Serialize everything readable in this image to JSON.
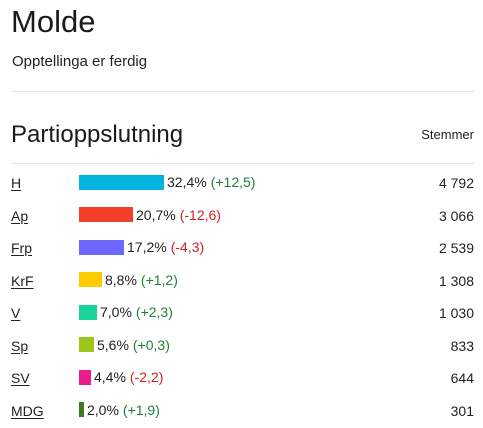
{
  "header": {
    "title": "Molde",
    "status": "Opptellinga er ferdig"
  },
  "section": {
    "title": "Partioppslutning",
    "votes_header": "Stemmer"
  },
  "parties": [
    {
      "name": "H",
      "pct": "32,4%",
      "change": "(+12,5)",
      "votes": "4 792",
      "color": "#00b4dd",
      "share": 32.4,
      "positive": true
    },
    {
      "name": "Ap",
      "pct": "20,7%",
      "change": "(-12,6)",
      "votes": "3 066",
      "color": "#f43f2a",
      "share": 20.7,
      "positive": false
    },
    {
      "name": "Frp",
      "pct": "17,2%",
      "change": "(-4,3)",
      "votes": "2 539",
      "color": "#6b67ff",
      "share": 17.2,
      "positive": false
    },
    {
      "name": "KrF",
      "pct": "8,8%",
      "change": "(+1,2)",
      "votes": "1 308",
      "color": "#ffcc00",
      "share": 8.8,
      "positive": true
    },
    {
      "name": "V",
      "pct": "7,0%",
      "change": "(+2,3)",
      "votes": "1 030",
      "color": "#19d39a",
      "share": 7.0,
      "positive": true
    },
    {
      "name": "Sp",
      "pct": "5,6%",
      "change": "(+0,3)",
      "votes": "833",
      "color": "#9cc51a",
      "share": 5.6,
      "positive": true
    },
    {
      "name": "SV",
      "pct": "4,4%",
      "change": "(-2,2)",
      "votes": "644",
      "color": "#ec1c8c",
      "share": 4.4,
      "positive": false
    },
    {
      "name": "MDG",
      "pct": "2,0%",
      "change": "(+1,9)",
      "votes": "301",
      "color": "#3f7a1e",
      "share": 2.0,
      "positive": true
    }
  ]
}
